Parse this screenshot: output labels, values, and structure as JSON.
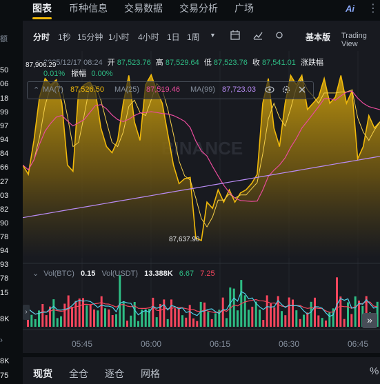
{
  "nav": {
    "tabs": [
      "图表",
      "币种信息",
      "交易数据",
      "交易分析",
      "广场"
    ],
    "ai_label": "Ai"
  },
  "toolbar": {
    "intervals": [
      "分时",
      "1秒",
      "15分钟",
      "1小时",
      "4小时",
      "1日",
      "1周"
    ],
    "view_mode": "基本版",
    "tradingview": "Trading View"
  },
  "ohlc": {
    "datetime": "2025/12/17 08:24",
    "open_label": "开",
    "open": "87,523.76",
    "high_label": "高",
    "high": "87,529.64",
    "low_label": "低",
    "low": "87,523.76",
    "close_label": "收",
    "close": "87,541.01",
    "change_label": "涨跌幅",
    "change": "0.01%",
    "amplitude_label": "振幅",
    "amplitude": "0.00%"
  },
  "ma": {
    "ma7_label": "MA(7)",
    "ma7": "87,526.50",
    "ma25_label": "MA(25)",
    "ma25": "87,519.46",
    "ma99_label": "MA(99)",
    "ma99": "87,723.03"
  },
  "chart_labels": {
    "max_price": "87,906.29",
    "min_price": "87,637.90",
    "watermark": "BINANCE"
  },
  "volume": {
    "vol_btc_label": "Vol(BTC)",
    "vol_btc": "0.15",
    "vol_usdt_label": "Vol(USDT)",
    "vol_usdt": "13.388K",
    "ma_a": "6.67",
    "ma_b": "7.25"
  },
  "left_strip": {
    "header": "额",
    "values": [
      "50",
      "06",
      "18",
      "99",
      "97",
      "94",
      "84",
      "66",
      "27",
      "03",
      "82",
      "90",
      "78",
      "94",
      "93",
      "78",
      "15",
      "8K",
      "75"
    ],
    "bottom_values": [
      "8K",
      "75"
    ]
  },
  "bottom_tabs": [
    "现货",
    "全仓",
    "逐仓",
    "网格"
  ],
  "colors": {
    "accent": "#f0b90b",
    "up": "#2ebd85",
    "down": "#f6465d",
    "ma25": "#e84b9c",
    "ma99": "#b98cf5"
  },
  "chart_data": {
    "type": "area",
    "x_ticks": [
      "05:45",
      "06:00",
      "06:15",
      "06:30",
      "06:45"
    ],
    "price_series": [
      87760,
      87745,
      87800,
      87870,
      87900,
      87890,
      87898,
      87860,
      87760,
      87750,
      87880,
      87890,
      87895,
      87880,
      87820,
      87790,
      87780,
      87800,
      87860,
      87905,
      87830,
      87800,
      87890,
      87906,
      87880,
      87860,
      87810,
      87760,
      87730,
      87738,
      87740,
      87642,
      87638,
      87700,
      87690,
      87720,
      87700,
      87720,
      87700,
      87715,
      87720,
      87730,
      87745,
      87860,
      87900,
      87820,
      87790,
      87860,
      87905,
      87890,
      87905,
      87850,
      87860,
      87870,
      87900,
      87860,
      87870,
      87905,
      87860,
      87880,
      87770,
      87790,
      87840,
      87820,
      87830
    ],
    "max": "87,906.29",
    "min": "87,637.90",
    "ma7": 87526.5,
    "ma25": 87519.46,
    "ma99": 87723.03,
    "volume_last": {
      "btc": 0.15,
      "usdt": "13.388K"
    }
  }
}
